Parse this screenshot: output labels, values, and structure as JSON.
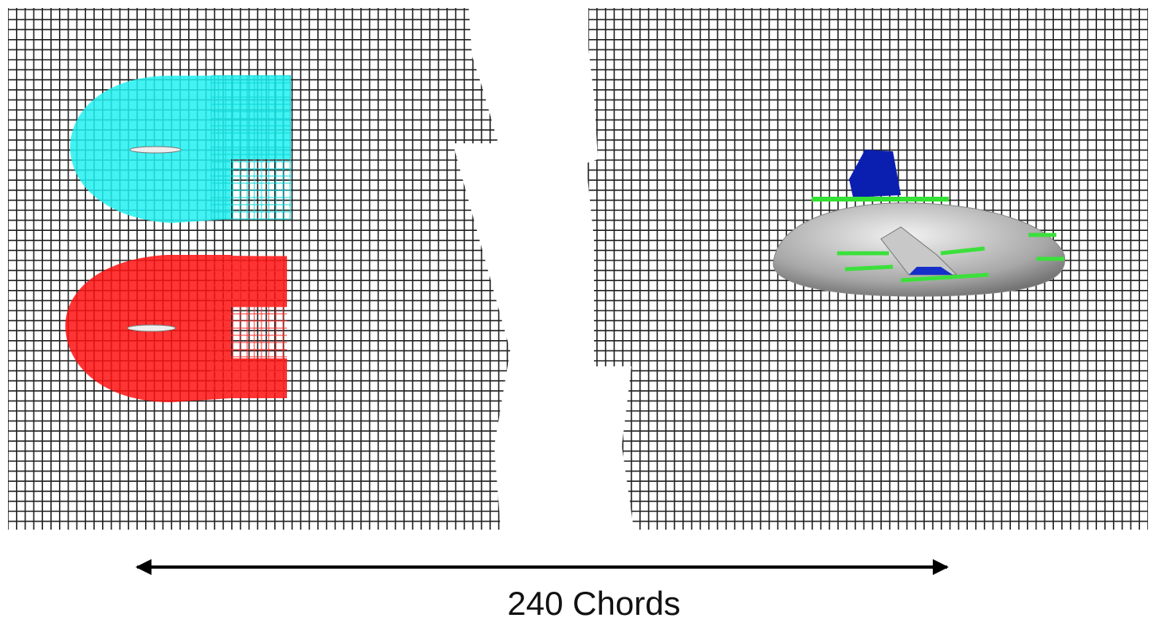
{
  "label": "240 Chords"
}
